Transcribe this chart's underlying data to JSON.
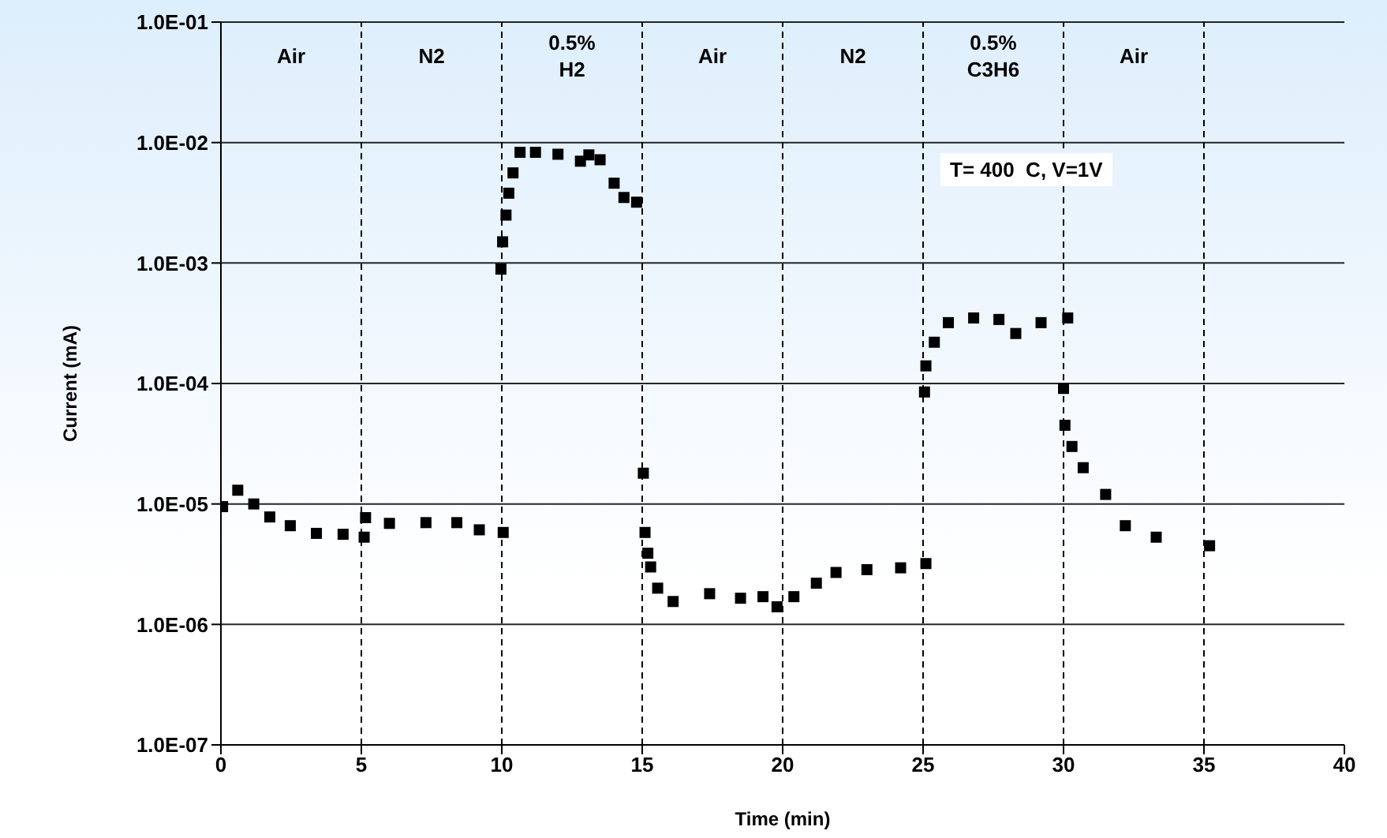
{
  "chart_data": {
    "type": "scatter",
    "xlabel": "Time (min)",
    "ylabel": "Current (mA)",
    "x": [
      0.06,
      0.6,
      1.17,
      1.74,
      2.47,
      3.4,
      4.35,
      5.1,
      5.15,
      6,
      7.3,
      8.4,
      9.2,
      10.05,
      9.97,
      10.03,
      10.15,
      10.25,
      10.4,
      10.65,
      11.2,
      12.0,
      12.8,
      13.1,
      13.5,
      14.0,
      14.35,
      14.8,
      15.04,
      15.1,
      15.2,
      15.3,
      15.55,
      16.1,
      17.4,
      18.5,
      19.3,
      19.8,
      20.4,
      21.2,
      21.9,
      23.0,
      24.2,
      25.1,
      25.05,
      25.1,
      25.4,
      25.9,
      26.8,
      27.7,
      28.3,
      29.2,
      30.15,
      30.0,
      30.05,
      30.3,
      30.7,
      31.5,
      32.2,
      33.3,
      35.2
    ],
    "series": [
      {
        "color": "#000000",
        "values": [
          9.5e-06,
          1.3e-05,
          1e-05,
          7.8e-06,
          6.6e-06,
          5.7e-06,
          5.6e-06,
          5.3e-06,
          7.7e-06,
          6.9e-06,
          7e-06,
          7e-06,
          6.1e-06,
          5.8e-06,
          0.00089,
          0.0015,
          0.0025,
          0.0038,
          0.0056,
          0.0083,
          0.0083,
          0.008,
          0.007,
          0.0079,
          0.0072,
          0.0046,
          0.0035,
          0.0032,
          1.8e-05,
          5.8e-06,
          3.9e-06,
          3e-06,
          2e-06,
          1.55e-06,
          1.8e-06,
          1.65e-06,
          1.7e-06,
          1.4e-06,
          1.7e-06,
          2.2e-06,
          2.7e-06,
          2.85e-06,
          2.95e-06,
          3.2e-06,
          8.5e-05,
          0.00014,
          0.00022,
          0.00032,
          0.00035,
          0.00034,
          0.00026,
          0.00032,
          0.00035,
          9.1e-05,
          4.5e-05,
          3e-05,
          2e-05,
          1.2e-05,
          6.6e-06,
          5.3e-06,
          4.5e-06
        ]
      }
    ],
    "xlim": [
      0,
      40
    ],
    "xticks": [
      0,
      5,
      10,
      15,
      20,
      25,
      30,
      35,
      40
    ],
    "ylim": [
      1e-07,
      0.1
    ],
    "log": true,
    "yticks": [
      {
        "value": 1e-07,
        "label": "1.0E-07"
      },
      {
        "value": 1e-06,
        "label": "1.0E-06"
      },
      {
        "value": 1e-05,
        "label": "1.0E-05"
      },
      {
        "value": 0.0001,
        "label": "1.0E-04"
      },
      {
        "value": 0.001,
        "label": "1.0E-03"
      },
      {
        "value": 0.01,
        "label": "1.0E-02"
      },
      {
        "value": 0.1,
        "label": "1.0E-01"
      }
    ],
    "grid": "y",
    "marker": "square",
    "legend": false,
    "ref_lines": [
      {
        "axis": "x",
        "value": 5,
        "color": "#000000",
        "line_style": "dashed"
      },
      {
        "axis": "x",
        "value": 10,
        "color": "#000000",
        "line_style": "dashed"
      },
      {
        "axis": "x",
        "value": 15,
        "color": "#000000",
        "line_style": "dashed"
      },
      {
        "axis": "x",
        "value": 20,
        "color": "#000000",
        "line_style": "dashed"
      },
      {
        "axis": "x",
        "value": 25,
        "color": "#000000",
        "line_style": "dashed"
      },
      {
        "axis": "x",
        "value": 30,
        "color": "#000000",
        "line_style": "dashed"
      },
      {
        "axis": "x",
        "value": 35,
        "color": "#000000",
        "line_style": "dashed"
      }
    ],
    "annotations": [
      "Air",
      "N2",
      "0.5%\nH2",
      "Air",
      "N2",
      "0.5%\nC3H6",
      "Air",
      "T= 400  C, V=1V"
    ]
  }
}
